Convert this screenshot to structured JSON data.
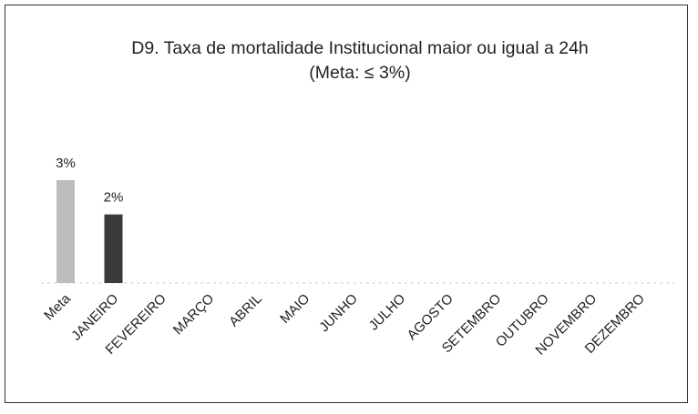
{
  "chart_data": {
    "type": "bar",
    "title": "D9. Taxa de mortalidade Institucional maior ou igual a 24h",
    "subtitle": "(Meta: ≤ 3%)",
    "categories": [
      "Meta",
      "JANEIRO",
      "FEVEREIRO",
      "MARÇO",
      "ABRIL",
      "MAIO",
      "JUNHO",
      "JULHO",
      "AGOSTO",
      "SETEMBRO",
      "OUTUBRO",
      "NOVEMBRO",
      "DEZEMBRO"
    ],
    "values": [
      3,
      2,
      null,
      null,
      null,
      null,
      null,
      null,
      null,
      null,
      null,
      null,
      null
    ],
    "value_labels": [
      "3%",
      "2%",
      null,
      null,
      null,
      null,
      null,
      null,
      null,
      null,
      null,
      null,
      null
    ],
    "meta_color": "#bdbdbd",
    "color": "#3a3a3a"
  }
}
